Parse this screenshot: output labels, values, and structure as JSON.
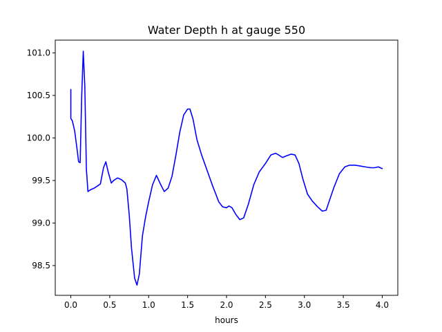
{
  "chart_data": {
    "type": "line",
    "title": "Water Depth h at gauge 550",
    "xlabel": "hours",
    "ylabel": "",
    "xlim": [
      -0.2,
      4.2
    ],
    "ylim": [
      98.15,
      101.15
    ],
    "xticks": [
      0.0,
      0.5,
      1.0,
      1.5,
      2.0,
      2.5,
      3.0,
      3.5,
      4.0
    ],
    "xtick_labels": [
      "0.0",
      "0.5",
      "1.0",
      "1.5",
      "2.0",
      "2.5",
      "3.0",
      "3.5",
      "4.0"
    ],
    "yticks": [
      98.5,
      99.0,
      99.5,
      100.0,
      100.5,
      101.0
    ],
    "ytick_labels": [
      "98.5",
      "99.0",
      "99.5",
      "100.0",
      "100.5",
      "101.0"
    ],
    "grid": false,
    "series": [
      {
        "name": "",
        "color": "#0000ff",
        "x": [
          0.0,
          0.0,
          0.0,
          0.02,
          0.05,
          0.08,
          0.1,
          0.12,
          0.14,
          0.16,
          0.18,
          0.2,
          0.22,
          0.25,
          0.3,
          0.35,
          0.38,
          0.42,
          0.45,
          0.48,
          0.52,
          0.55,
          0.6,
          0.65,
          0.7,
          0.72,
          0.75,
          0.78,
          0.82,
          0.85,
          0.88,
          0.92,
          0.96,
          1.0,
          1.05,
          1.1,
          1.15,
          1.2,
          1.25,
          1.3,
          1.35,
          1.4,
          1.45,
          1.5,
          1.53,
          1.57,
          1.62,
          1.68,
          1.75,
          1.82,
          1.9,
          1.95,
          2.0,
          2.03,
          2.07,
          2.12,
          2.17,
          2.22,
          2.28,
          2.35,
          2.42,
          2.5,
          2.57,
          2.63,
          2.67,
          2.72,
          2.77,
          2.83,
          2.88,
          2.93,
          2.98,
          3.04,
          3.1,
          3.17,
          3.23,
          3.28,
          3.32,
          3.38,
          3.45,
          3.52,
          3.58,
          3.65,
          3.72,
          3.78,
          3.85,
          3.9,
          3.95,
          4.0
        ],
        "y": [
          100.57,
          100.43,
          100.23,
          100.2,
          100.08,
          99.87,
          99.72,
          99.71,
          100.5,
          101.02,
          100.6,
          99.63,
          99.37,
          99.39,
          99.41,
          99.44,
          99.46,
          99.65,
          99.72,
          99.6,
          99.47,
          99.5,
          99.53,
          99.51,
          99.47,
          99.4,
          99.1,
          98.7,
          98.35,
          98.27,
          98.4,
          98.85,
          99.07,
          99.25,
          99.45,
          99.56,
          99.46,
          99.37,
          99.41,
          99.55,
          99.8,
          100.07,
          100.27,
          100.34,
          100.34,
          100.22,
          99.98,
          99.8,
          99.62,
          99.44,
          99.25,
          99.19,
          99.18,
          99.2,
          99.18,
          99.1,
          99.04,
          99.06,
          99.22,
          99.45,
          99.6,
          99.7,
          99.8,
          99.82,
          99.8,
          99.77,
          99.79,
          99.81,
          99.8,
          99.7,
          99.52,
          99.34,
          99.26,
          99.19,
          99.14,
          99.15,
          99.26,
          99.42,
          99.58,
          99.66,
          99.68,
          99.68,
          99.67,
          99.66,
          99.65,
          99.65,
          99.66,
          99.64
        ]
      }
    ]
  }
}
